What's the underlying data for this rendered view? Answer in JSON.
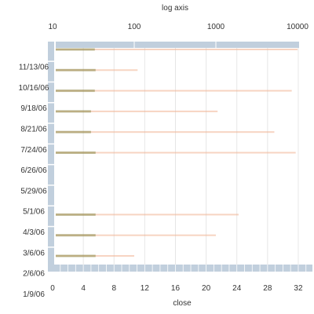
{
  "chart_data": {
    "type": "bar",
    "top_axis": {
      "label": "log axis",
      "scale": "log",
      "range": [
        10,
        10000
      ],
      "ticks": [
        "10",
        "100",
        "1000",
        "10000"
      ]
    },
    "bottom_axis": {
      "label": "close",
      "scale": "linear",
      "range": [
        0,
        33
      ],
      "ticks": [
        "0",
        "4",
        "8",
        "12",
        "16",
        "20",
        "24",
        "28",
        "32"
      ]
    },
    "categories": [
      "11/13/06",
      "10/16/06",
      "9/18/06",
      "8/21/06",
      "7/24/06",
      "6/26/06",
      "5/29/06",
      "5/1/06",
      "4/3/06",
      "3/6/06",
      "2/6/06",
      "1/9/06"
    ],
    "log_values": [
      10000,
      110,
      8500,
      1050,
      5200,
      9500,
      null,
      null,
      1900,
      1000,
      100,
      null
    ],
    "close_values": [
      5.5,
      5.6,
      5.5,
      5.0,
      5.0,
      5.6,
      null,
      null,
      5.6,
      5.6,
      5.6,
      null
    ],
    "grid": true,
    "colors": {
      "frame": "#c1cfdd",
      "log_bar": "#f0b090",
      "close_bar": "#8c8c4c",
      "grid": "#e6e6e6"
    }
  }
}
